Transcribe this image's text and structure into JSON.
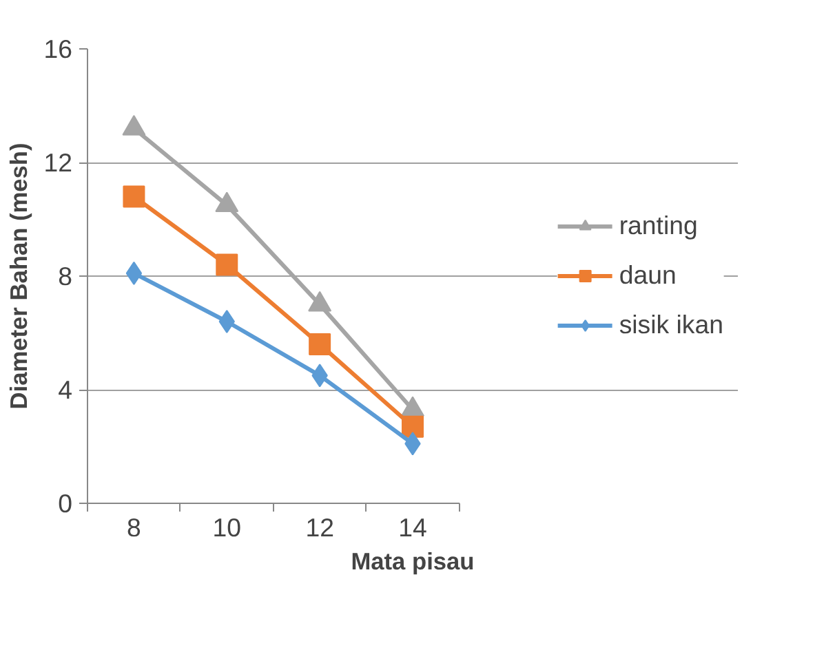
{
  "chart_data": {
    "type": "line",
    "xlabel": "Mata pisau",
    "ylabel": "Diameter Bahan (mesh)",
    "categories": [
      "8",
      "10",
      "12",
      "14"
    ],
    "ylim": [
      0,
      16
    ],
    "yticks": [
      0,
      4,
      8,
      12,
      16
    ],
    "grid": "y",
    "legend": "right",
    "series": [
      {
        "name": "ranting",
        "color": "#a5a5a5",
        "marker": "triangle",
        "values": [
          13.2,
          10.5,
          7.0,
          3.3
        ]
      },
      {
        "name": "daun",
        "color": "#ed7d31",
        "marker": "square",
        "values": [
          10.8,
          8.4,
          5.6,
          2.7
        ]
      },
      {
        "name": "sisik ikan",
        "color": "#5b9bd5",
        "marker": "diamond",
        "values": [
          8.1,
          6.4,
          4.5,
          2.1
        ]
      }
    ]
  }
}
